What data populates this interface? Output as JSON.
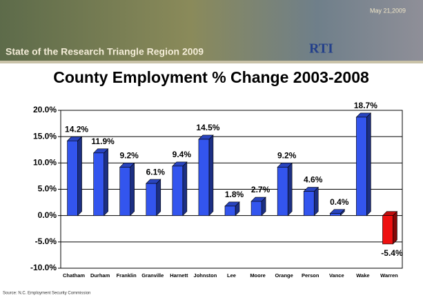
{
  "header": {
    "title": "State of the Research Triangle Region 2009",
    "date": "May 21,2009",
    "logo": "RTI"
  },
  "chart_data": {
    "type": "bar",
    "title": "County Employment % Change 2003-2008",
    "categories": [
      "Chatham",
      "Durham",
      "Franklin",
      "Granville",
      "Harnett",
      "Johnston",
      "Lee",
      "Moore",
      "Orange",
      "Person",
      "Vance",
      "Wake",
      "Warren"
    ],
    "values": [
      14.2,
      11.9,
      9.2,
      6.1,
      9.4,
      14.5,
      1.8,
      2.7,
      9.2,
      4.6,
      0.4,
      18.7,
      -5.4
    ],
    "value_labels": [
      "14.2%",
      "11.9%",
      "9.2%",
      "6.1%",
      "9.4%",
      "14.5%",
      "1.8%",
      "2.7%",
      "9.2%",
      "4.6%",
      "0.4%",
      "18.7%",
      "-5.4%"
    ],
    "colors": [
      "#3355ee",
      "#3355ee",
      "#3355ee",
      "#3355ee",
      "#3355ee",
      "#3355ee",
      "#3355ee",
      "#3355ee",
      "#3355ee",
      "#3355ee",
      "#3355ee",
      "#3355ee",
      "#ee1111"
    ],
    "ylim": [
      -10,
      20
    ],
    "yticks": [
      {
        "value": -10,
        "label": "-10.0%"
      },
      {
        "value": -5,
        "label": "-5.0%"
      },
      {
        "value": 0,
        "label": "0.0%"
      },
      {
        "value": 5,
        "label": "5.0%"
      },
      {
        "value": 10,
        "label": "10.0%"
      },
      {
        "value": 15,
        "label": "15.0%"
      },
      {
        "value": 20,
        "label": "20.0%"
      }
    ],
    "grid": true,
    "source": "Source: N.C. Employment Security Commission"
  }
}
